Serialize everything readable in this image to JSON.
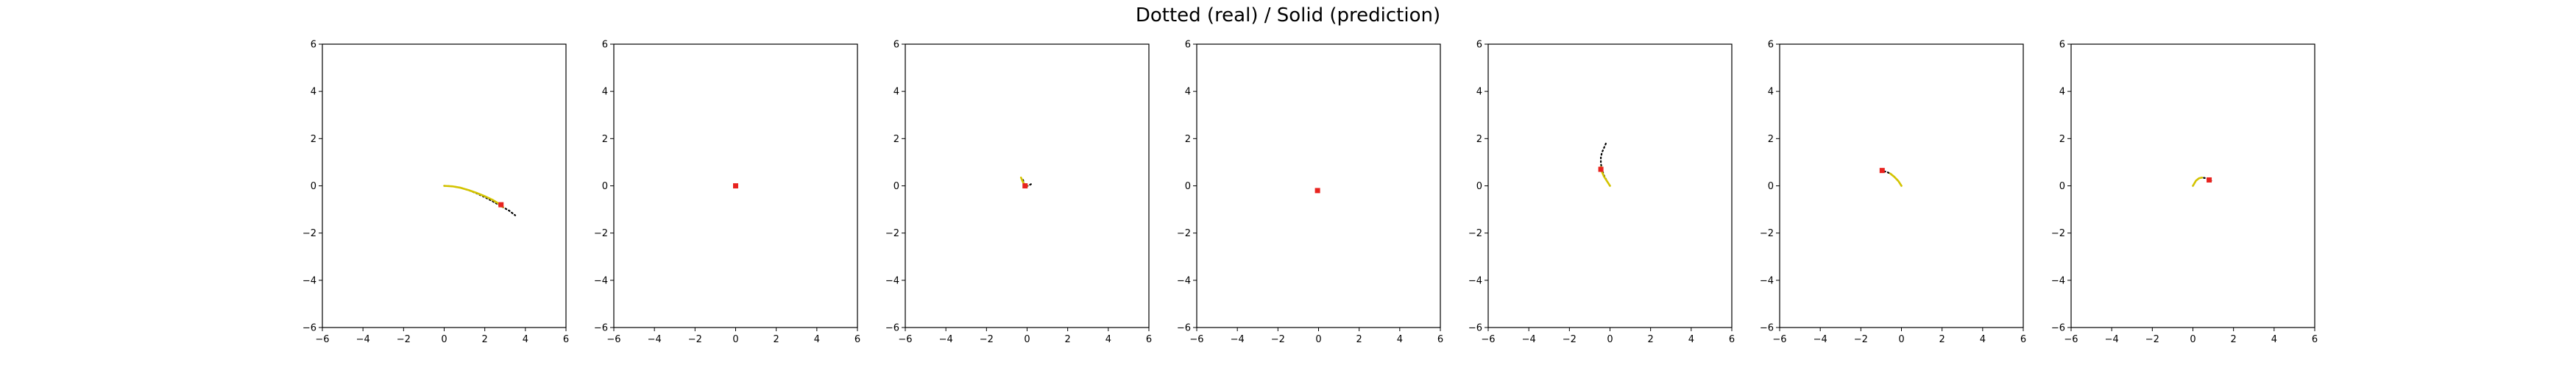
{
  "figure": {
    "suptitle": "Dotted (real) / Solid (prediction)"
  },
  "colors": {
    "real": "#000000",
    "prediction": "#d4c400",
    "start_marker": "#e8231f"
  },
  "chart_data": [
    {
      "type": "line",
      "xlim": [
        -6,
        6
      ],
      "ylim": [
        -6,
        6
      ],
      "xticks": [
        "−6",
        "−4",
        "−2",
        "0",
        "2",
        "4",
        "6"
      ],
      "yticks": [
        "−6",
        "−4",
        "−2",
        "0",
        "2",
        "4",
        "6"
      ],
      "grid": false,
      "series": [
        {
          "style": "dotted",
          "x": [
            0.0,
            0.4,
            0.8,
            1.2,
            1.6,
            2.0,
            2.4,
            2.8,
            3.2,
            3.5
          ],
          "y": [
            0.0,
            -0.02,
            -0.08,
            -0.18,
            -0.32,
            -0.48,
            -0.66,
            -0.86,
            -1.05,
            -1.25
          ]
        },
        {
          "style": "solid",
          "x": [
            0.0,
            0.4,
            0.8,
            1.2,
            1.6,
            2.0,
            2.4,
            2.7,
            2.9
          ],
          "y": [
            0.0,
            -0.02,
            -0.08,
            -0.18,
            -0.3,
            -0.44,
            -0.6,
            -0.76,
            -0.9
          ]
        }
      ],
      "start_point": [
        2.8,
        -0.8
      ]
    },
    {
      "type": "line",
      "xlim": [
        -6,
        6
      ],
      "ylim": [
        -6,
        6
      ],
      "xticks": [
        "−6",
        "−4",
        "−2",
        "0",
        "2",
        "4",
        "6"
      ],
      "yticks": [
        "−6",
        "−4",
        "−2",
        "0",
        "2",
        "4",
        "6"
      ],
      "grid": false,
      "series": [
        {
          "style": "dotted",
          "x": [
            -0.05,
            0.0,
            0.05
          ],
          "y": [
            0.0,
            0.02,
            0.0
          ]
        },
        {
          "style": "solid",
          "x": [
            -0.03,
            0.03
          ],
          "y": [
            0.0,
            0.0
          ]
        }
      ],
      "start_point": [
        0.0,
        0.0
      ]
    },
    {
      "type": "line",
      "xlim": [
        -6,
        6
      ],
      "ylim": [
        -6,
        6
      ],
      "xticks": [
        "−6",
        "−4",
        "−2",
        "0",
        "2",
        "4",
        "6"
      ],
      "yticks": [
        "−6",
        "−4",
        "−2",
        "0",
        "2",
        "4",
        "6"
      ],
      "grid": false,
      "series": [
        {
          "style": "dotted",
          "x": [
            -0.2,
            -0.15,
            -0.05,
            0.05,
            0.15,
            0.25
          ],
          "y": [
            0.25,
            0.1,
            0.0,
            0.0,
            0.05,
            0.1
          ]
        },
        {
          "style": "solid",
          "x": [
            -0.3,
            -0.2,
            -0.1,
            0.0
          ],
          "y": [
            0.35,
            0.15,
            0.03,
            0.0
          ]
        }
      ],
      "start_point": [
        -0.1,
        0.0
      ]
    },
    {
      "type": "line",
      "xlim": [
        -6,
        6
      ],
      "ylim": [
        -6,
        6
      ],
      "xticks": [
        "−6",
        "−4",
        "−2",
        "0",
        "2",
        "4",
        "6"
      ],
      "yticks": [
        "−6",
        "−4",
        "−2",
        "0",
        "2",
        "4",
        "6"
      ],
      "grid": false,
      "series": [
        {
          "style": "dotted",
          "x": [
            -0.05,
            0.0,
            0.05
          ],
          "y": [
            -0.15,
            -0.18,
            -0.2
          ]
        },
        {
          "style": "solid",
          "x": [
            -0.02,
            0.02
          ],
          "y": [
            -0.16,
            -0.18
          ]
        }
      ],
      "start_point": [
        -0.05,
        -0.2
      ]
    },
    {
      "type": "line",
      "xlim": [
        -6,
        6
      ],
      "ylim": [
        -6,
        6
      ],
      "xticks": [
        "−6",
        "−4",
        "−2",
        "0",
        "2",
        "4",
        "6"
      ],
      "yticks": [
        "−6",
        "−4",
        "−2",
        "0",
        "2",
        "4",
        "6"
      ],
      "grid": false,
      "series": [
        {
          "style": "dotted",
          "x": [
            0.0,
            -0.15,
            -0.3,
            -0.4,
            -0.45,
            -0.45,
            -0.4,
            -0.3,
            -0.2
          ],
          "y": [
            0.0,
            0.2,
            0.45,
            0.7,
            0.95,
            1.2,
            1.4,
            1.6,
            1.8
          ]
        },
        {
          "style": "solid",
          "x": [
            0.0,
            -0.15,
            -0.3,
            -0.4,
            -0.45
          ],
          "y": [
            0.0,
            0.2,
            0.4,
            0.6,
            0.8
          ]
        }
      ],
      "start_point": [
        -0.45,
        0.7
      ]
    },
    {
      "type": "line",
      "xlim": [
        -6,
        6
      ],
      "ylim": [
        -6,
        6
      ],
      "xticks": [
        "−6",
        "−4",
        "−2",
        "0",
        "2",
        "4",
        "6"
      ],
      "yticks": [
        "−6",
        "−4",
        "−2",
        "0",
        "2",
        "4",
        "6"
      ],
      "grid": false,
      "series": [
        {
          "style": "dotted",
          "x": [
            0.0,
            -0.15,
            -0.35,
            -0.55,
            -0.75,
            -0.95
          ],
          "y": [
            0.0,
            0.2,
            0.38,
            0.52,
            0.6,
            0.62
          ]
        },
        {
          "style": "solid",
          "x": [
            0.0,
            -0.15,
            -0.35,
            -0.55
          ],
          "y": [
            0.0,
            0.2,
            0.38,
            0.52
          ]
        }
      ],
      "start_point": [
        -0.95,
        0.65
      ]
    },
    {
      "type": "line",
      "xlim": [
        -6,
        6
      ],
      "ylim": [
        -6,
        6
      ],
      "xticks": [
        "−6",
        "−4",
        "−2",
        "0",
        "2",
        "4",
        "6"
      ],
      "yticks": [
        "−6",
        "−4",
        "−2",
        "0",
        "2",
        "4",
        "6"
      ],
      "grid": false,
      "series": [
        {
          "style": "dotted",
          "x": [
            0.0,
            0.15,
            0.3,
            0.45,
            0.6,
            0.75,
            0.9
          ],
          "y": [
            0.0,
            0.22,
            0.32,
            0.35,
            0.33,
            0.28,
            0.22
          ]
        },
        {
          "style": "solid",
          "x": [
            0.0,
            0.15,
            0.3,
            0.45
          ],
          "y": [
            0.0,
            0.22,
            0.32,
            0.35
          ]
        }
      ],
      "start_point": [
        0.8,
        0.25
      ]
    }
  ]
}
